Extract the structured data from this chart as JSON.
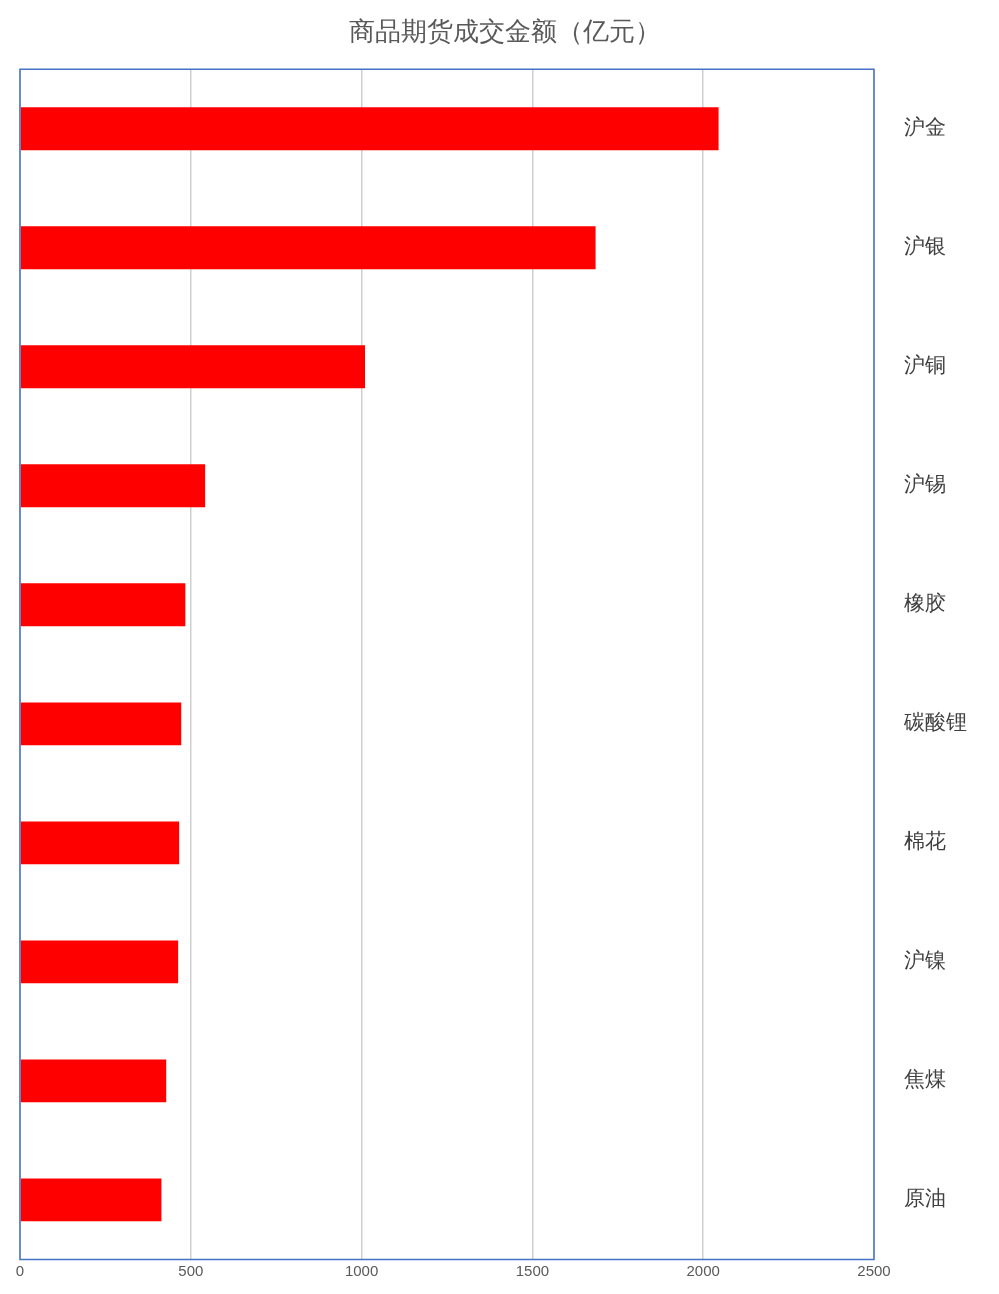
{
  "chart_data": {
    "type": "bar",
    "orientation": "horizontal",
    "title": "商品期货成交金额（亿元）",
    "categories": [
      "沪金",
      "沪银",
      "沪铜",
      "沪锡",
      "橡胶",
      "碳酸锂",
      "棉花",
      "沪镍",
      "焦煤",
      "原油"
    ],
    "values": [
      2045,
      1685,
      1010,
      542,
      484,
      472,
      466,
      463,
      428,
      414
    ],
    "color": "#ff0000",
    "xlim": [
      0,
      2500
    ],
    "xticks": [
      0,
      500,
      1000,
      1500,
      2000,
      2500
    ],
    "grid": "x",
    "legend": false
  }
}
